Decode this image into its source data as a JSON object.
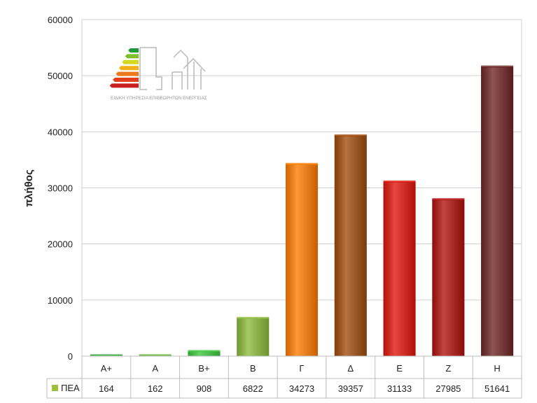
{
  "chart_data": {
    "type": "bar",
    "ylabel": "πλήθος",
    "ylim": [
      0,
      60000
    ],
    "yticks": [
      0,
      10000,
      20000,
      30000,
      40000,
      50000,
      60000
    ],
    "grid": true,
    "categories": [
      "A+",
      "A",
      "B+",
      "B",
      "Γ",
      "Δ",
      "Ε",
      "Ζ",
      "Η"
    ],
    "series": [
      {
        "name": "ΠΕΑ",
        "values": [
          164,
          162,
          908,
          6822,
          34273,
          39357,
          31133,
          27985,
          51641
        ],
        "colors": [
          "#3fae3f",
          "#67b93c",
          "#3cc83c",
          "#8cba3a",
          "#ff7a00",
          "#a04a0c",
          "#e0140c",
          "#b0100c",
          "#6e2424"
        ]
      }
    ],
    "legend": {
      "label": "ΠΕΑ",
      "color": "#9cc03a",
      "placement": "data-table-row"
    },
    "logo": {
      "text": "ΕΙΔΙΚΗ ΥΠΗΡΕΣΙΑ ΕΠΙΘΕΩΡΗΤΩΝ ΕΝΕΡΓΕΙΑΣ",
      "energy_bar_colors": [
        "#1e9a3a",
        "#7fbf2a",
        "#d6d81e",
        "#f2b01a",
        "#ec7a1c",
        "#e0401c",
        "#c81e1e"
      ]
    }
  }
}
